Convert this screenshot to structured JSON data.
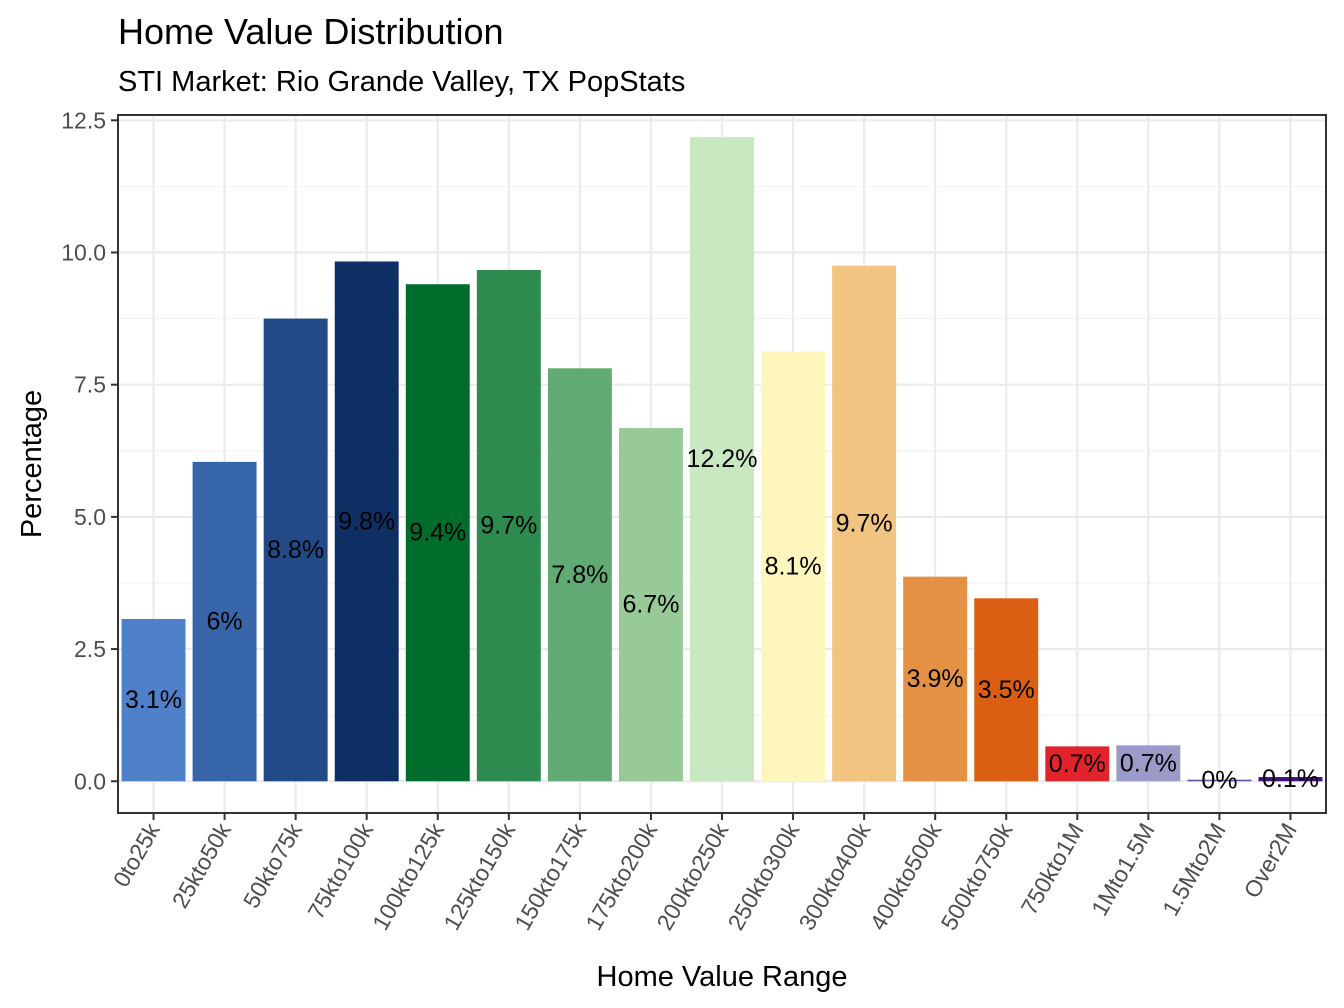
{
  "chart_data": {
    "type": "bar",
    "title": "Home Value Distribution",
    "subtitle": "STI Market: Rio Grande Valley, TX PopStats",
    "xlabel": "Home Value Range",
    "ylabel": "Percentage",
    "ylim": [
      -0.6,
      12.6
    ],
    "yticks": [
      0,
      2.5,
      5,
      7.5,
      10,
      12.5
    ],
    "ytick_labels": [
      "0.0",
      "2.5",
      "5.0",
      "7.5",
      "10.0",
      "12.5"
    ],
    "grid": true,
    "legend": "none",
    "categories": [
      "0to25k",
      "25kto50k",
      "50kto75k",
      "75kto100k",
      "100kto125k",
      "125kto150k",
      "150kto175k",
      "175kto200k",
      "200kto250k",
      "250kto300k",
      "300kto400k",
      "400kto500k",
      "500kto750k",
      "750kto1M",
      "1Mto1.5M",
      "1.5Mto2M",
      "Over2M"
    ],
    "values": [
      3.07,
      6.04,
      8.75,
      9.83,
      9.4,
      9.67,
      7.81,
      6.68,
      12.18,
      8.13,
      9.75,
      3.87,
      3.46,
      0.66,
      0.68,
      0.03,
      0.08
    ],
    "labels": [
      "3.1%",
      "6%",
      "8.8%",
      "9.8%",
      "9.4%",
      "9.7%",
      "7.8%",
      "6.7%",
      "12.2%",
      "8.1%",
      "9.7%",
      "3.9%",
      "3.5%",
      "0.7%",
      "0.7%",
      "0%",
      "0.1%"
    ],
    "colors": [
      "#4f81cb",
      "#3665aa",
      "#224a87",
      "#0d2f64",
      "#006d2c",
      "#2e8b50",
      "#62aa73",
      "#98ca98",
      "#c8e8c1",
      "#fff6bd",
      "#f1c482",
      "#e59145",
      "#da5f13",
      "#e1232b",
      "#9c9ac8",
      "#6252a3",
      "#3f127d"
    ]
  }
}
